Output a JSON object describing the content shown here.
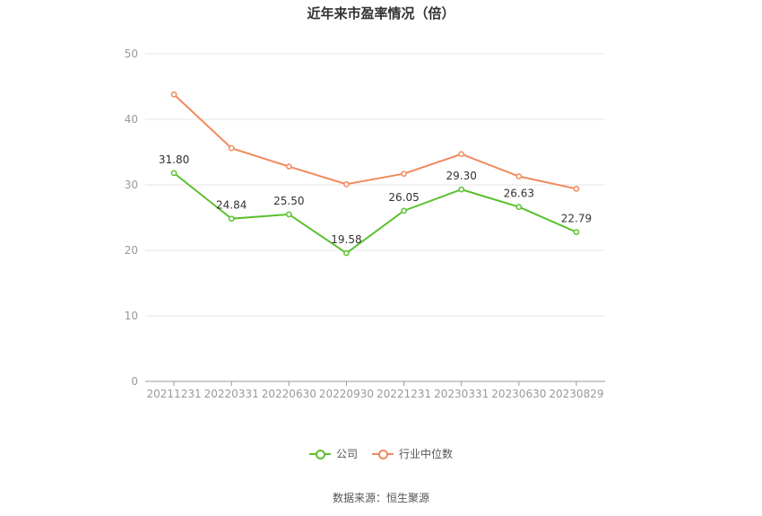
{
  "chart_data": {
    "type": "line",
    "title": "近年来市盈率情况（倍）",
    "categories": [
      "20211231",
      "20220331",
      "20220630",
      "20220930",
      "20221231",
      "20230331",
      "20230630",
      "20230829"
    ],
    "ylim": [
      0,
      50
    ],
    "yticks": [
      "0",
      "10",
      "20",
      "30",
      "40",
      "50"
    ],
    "grid": true,
    "legend_position": "bottom",
    "series": [
      {
        "name": "公司",
        "color": "#5cc02f",
        "values": [
          31.8,
          24.84,
          25.5,
          19.58,
          26.05,
          29.3,
          26.63,
          22.79
        ],
        "labels": [
          "31.80",
          "24.84",
          "25.50",
          "19.58",
          "26.05",
          "29.30",
          "26.63",
          "22.79"
        ]
      },
      {
        "name": "行业中位数",
        "color": "#f08a5d",
        "values": [
          43.8,
          35.6,
          32.8,
          30.1,
          31.7,
          34.7,
          31.3,
          29.4
        ]
      }
    ],
    "source": "数据来源：恒生聚源"
  }
}
